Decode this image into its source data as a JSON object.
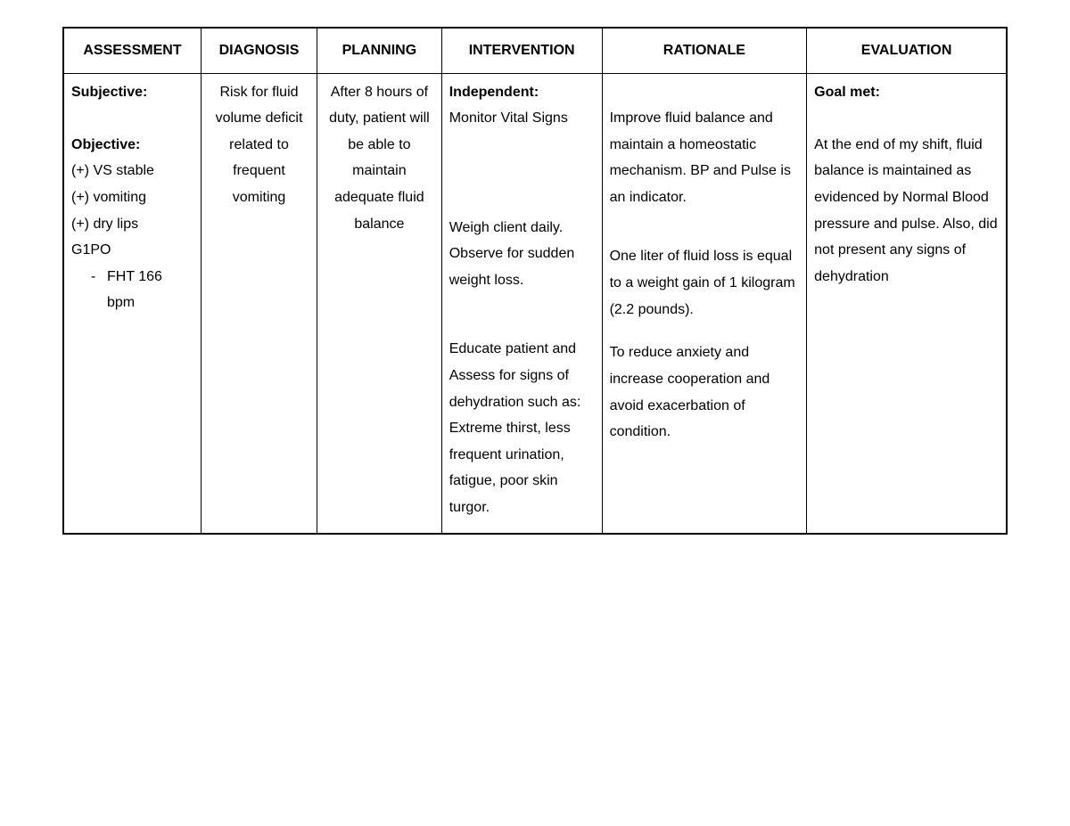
{
  "table": {
    "type": "table",
    "columns": [
      {
        "label": "ASSESSMENT",
        "width_pct": 14.6,
        "align": "left"
      },
      {
        "label": "DIAGNOSIS",
        "width_pct": 12.3,
        "align": "center"
      },
      {
        "label": "PLANNING",
        "width_pct": 13.2,
        "align": "center"
      },
      {
        "label": "INTERVENTION",
        "width_pct": 17.0,
        "align": "left"
      },
      {
        "label": "RATIONALE",
        "width_pct": 21.7,
        "align": "left"
      },
      {
        "label": "EVALUATION",
        "width_pct": 21.2,
        "align": "left"
      }
    ],
    "border_color": "#000000",
    "background_color": "#ffffff",
    "text_color": "#000000",
    "header_fontsize": 16,
    "body_fontsize": 16,
    "line_height": 1.85
  },
  "assessment": {
    "subjective_label": "Subjective:",
    "objective_label": "Objective:",
    "objective_items": {
      "i0": "(+) VS stable",
      "i1": "(+) vomiting",
      "i2": "(+) dry lips",
      "i3": "G1PO"
    },
    "objective_sub": {
      "dash": "-",
      "text": "FHT 166 bpm"
    }
  },
  "diagnosis": {
    "text": "Risk for fluid volume deficit related to frequent vomiting"
  },
  "planning": {
    "text": "After 8 hours of duty, patient will be able to maintain adequate fluid balance"
  },
  "intervention": {
    "independent_label": "Independent:",
    "items": {
      "i0": "Monitor Vital Signs",
      "i1": "Weigh client daily. Observe for sudden weight loss.",
      "i2": "Educate patient and Assess for signs of dehydration such as: Extreme thirst, less frequent urination, fatigue, poor skin turgor."
    }
  },
  "rationale": {
    "items": {
      "i0": "Improve fluid balance and maintain a homeostatic mechanism. BP and Pulse is an indicator.",
      "i1": "One liter of fluid loss is equal to a weight gain of 1 kilogram (2.2 pounds).",
      "i2": "To reduce anxiety and increase cooperation and avoid exacerbation of condition."
    }
  },
  "evaluation": {
    "goal_met_label": "Goal met:",
    "text": "At the end of my shift, fluid balance is maintained as evidenced by Normal Blood pressure and pulse. Also, did not present any signs of dehydration"
  }
}
